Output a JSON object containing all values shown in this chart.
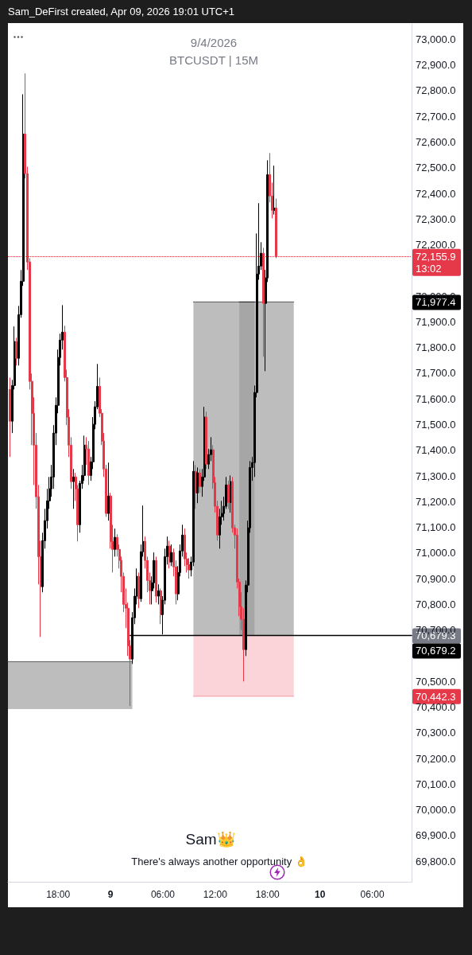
{
  "chart_data": {
    "type": "candlestick",
    "title": "9/4/2026",
    "subtitle": "BTCUSDT | 15M",
    "xlim": [
      "2026-04-08T12:15",
      "2026-04-10T10:30"
    ],
    "xticks": [
      {
        "value": "2026-04-08T18:00",
        "label": "18:00"
      },
      {
        "value": "2026-04-09T00:00",
        "label": "9"
      },
      {
        "value": "2026-04-09T06:00",
        "label": "06:00"
      },
      {
        "value": "2026-04-09T12:00",
        "label": "12:00"
      },
      {
        "value": "2026-04-09T18:00",
        "label": "18:00"
      },
      {
        "value": "2026-04-10T00:00",
        "label": "10"
      },
      {
        "value": "2026-04-10T06:00",
        "label": "06:00"
      }
    ],
    "ylim": [
      69720,
      73060
    ],
    "yticks": [
      {
        "value": 69800,
        "label": "69,800.0"
      },
      {
        "value": 69900,
        "label": "69,900.0"
      },
      {
        "value": 70000,
        "label": "70,000.0"
      },
      {
        "value": 70100,
        "label": "70,100.0"
      },
      {
        "value": 70200,
        "label": "70,200.0"
      },
      {
        "value": 70300,
        "label": "70,300.0"
      },
      {
        "value": 70400,
        "label": "70,400.0"
      },
      {
        "value": 70500,
        "label": "70,500.0"
      },
      {
        "value": 70700,
        "label": "70,700.0"
      },
      {
        "value": 70800,
        "label": "70,800.0"
      },
      {
        "value": 70900,
        "label": "70,900.0"
      },
      {
        "value": 71000,
        "label": "71,000.0"
      },
      {
        "value": 71100,
        "label": "71,100.0"
      },
      {
        "value": 71200,
        "label": "71,200.0"
      },
      {
        "value": 71300,
        "label": "71,300.0"
      },
      {
        "value": 71400,
        "label": "71,400.0"
      },
      {
        "value": 71500,
        "label": "71,500.0"
      },
      {
        "value": 71600,
        "label": "71,600.0"
      },
      {
        "value": 71700,
        "label": "71,700.0"
      },
      {
        "value": 71800,
        "label": "71,800.0"
      },
      {
        "value": 71900,
        "label": "71,900.0"
      },
      {
        "value": 72000,
        "label": "72,000.0"
      },
      {
        "value": 72200,
        "label": "72,200.0"
      },
      {
        "value": 72300,
        "label": "72,300.0"
      },
      {
        "value": 72400,
        "label": "72,400.0"
      },
      {
        "value": 72500,
        "label": "72,500.0"
      },
      {
        "value": 72600,
        "label": "72,600.0"
      },
      {
        "value": 72700,
        "label": "72,700.0"
      },
      {
        "value": 72800,
        "label": "72,800.0"
      },
      {
        "value": 72900,
        "label": "72,900.0"
      },
      {
        "value": 73000,
        "label": "73,000.0"
      }
    ],
    "series": [
      {
        "x": [
          "2026-04-08T12:30",
          "2026-04-08T12:45",
          "2026-04-08T13:00",
          "2026-04-08T13:15",
          "2026-04-08T13:30",
          "2026-04-08T13:45",
          "2026-04-08T14:00",
          "2026-04-08T14:15",
          "2026-04-08T14:30",
          "2026-04-08T14:45",
          "2026-04-08T15:00",
          "2026-04-08T15:15",
          "2026-04-08T15:30",
          "2026-04-08T15:45",
          "2026-04-08T16:00",
          "2026-04-08T16:15",
          "2026-04-08T16:30",
          "2026-04-08T16:45",
          "2026-04-08T17:00",
          "2026-04-08T17:15",
          "2026-04-08T17:30",
          "2026-04-08T17:45",
          "2026-04-08T18:00",
          "2026-04-08T18:15",
          "2026-04-08T18:30",
          "2026-04-08T18:45",
          "2026-04-08T19:00",
          "2026-04-08T19:15",
          "2026-04-08T19:30",
          "2026-04-08T19:45",
          "2026-04-08T20:00",
          "2026-04-08T20:15",
          "2026-04-08T20:30",
          "2026-04-08T20:45",
          "2026-04-08T21:00",
          "2026-04-08T21:15",
          "2026-04-08T21:30",
          "2026-04-08T21:45",
          "2026-04-08T22:00",
          "2026-04-08T22:15",
          "2026-04-08T22:30",
          "2026-04-08T22:45",
          "2026-04-08T23:00",
          "2026-04-08T23:15",
          "2026-04-08T23:30",
          "2026-04-08T23:45",
          "2026-04-09T00:00",
          "2026-04-09T00:15",
          "2026-04-09T00:30",
          "2026-04-09T00:45",
          "2026-04-09T01:00",
          "2026-04-09T01:15",
          "2026-04-09T01:30",
          "2026-04-09T01:45",
          "2026-04-09T02:00",
          "2026-04-09T02:15",
          "2026-04-09T02:30",
          "2026-04-09T02:45",
          "2026-04-09T03:00",
          "2026-04-09T03:15",
          "2026-04-09T03:30",
          "2026-04-09T03:45",
          "2026-04-09T04:00",
          "2026-04-09T04:15",
          "2026-04-09T04:30",
          "2026-04-09T04:45",
          "2026-04-09T05:00",
          "2026-04-09T05:15",
          "2026-04-09T05:30",
          "2026-04-09T05:45",
          "2026-04-09T06:00",
          "2026-04-09T06:15",
          "2026-04-09T06:30",
          "2026-04-09T06:45",
          "2026-04-09T07:00",
          "2026-04-09T07:15",
          "2026-04-09T07:30",
          "2026-04-09T07:45",
          "2026-04-09T08:00",
          "2026-04-09T08:15",
          "2026-04-09T08:30",
          "2026-04-09T08:45",
          "2026-04-09T09:00",
          "2026-04-09T09:15",
          "2026-04-09T09:30",
          "2026-04-09T09:45",
          "2026-04-09T10:00",
          "2026-04-09T10:15",
          "2026-04-09T10:30",
          "2026-04-09T10:45",
          "2026-04-09T11:00",
          "2026-04-09T11:15",
          "2026-04-09T11:30",
          "2026-04-09T11:45",
          "2026-04-09T12:00",
          "2026-04-09T12:15",
          "2026-04-09T12:30",
          "2026-04-09T12:45",
          "2026-04-09T13:00",
          "2026-04-09T13:15",
          "2026-04-09T13:30",
          "2026-04-09T13:45",
          "2026-04-09T14:00",
          "2026-04-09T14:15",
          "2026-04-09T14:30",
          "2026-04-09T14:45",
          "2026-04-09T15:00",
          "2026-04-09T15:15",
          "2026-04-09T15:30",
          "2026-04-09T15:45",
          "2026-04-09T16:00",
          "2026-04-09T16:15",
          "2026-04-09T16:30",
          "2026-04-09T16:45",
          "2026-04-09T17:00",
          "2026-04-09T17:15",
          "2026-04-09T17:30",
          "2026-04-09T17:45",
          "2026-04-09T18:00",
          "2026-04-09T18:15",
          "2026-04-09T18:30",
          "2026-04-09T18:45",
          "2026-04-09T19:00"
        ],
        "ohlc": [
          [
            71637,
            71683,
            71374,
            71513
          ],
          [
            71513,
            71674,
            71467,
            71652
          ],
          [
            71652,
            71882,
            71637,
            71823
          ],
          [
            71823,
            71838,
            71730,
            71758
          ],
          [
            71758,
            71962,
            71730,
            71928
          ],
          [
            71928,
            72102,
            71916,
            72058
          ],
          [
            72058,
            72786,
            72040,
            72631
          ],
          [
            72631,
            72867,
            72458,
            72477
          ],
          [
            72477,
            72504,
            72102,
            72133
          ],
          [
            72133,
            72148,
            71637,
            71668
          ],
          [
            71668,
            71699,
            71420,
            71544
          ],
          [
            71544,
            71606,
            71265,
            71420
          ],
          [
            71420,
            71467,
            71172,
            71219
          ],
          [
            71219,
            71265,
            70878,
            70986
          ],
          [
            70986,
            71048,
            70673,
            70869
          ],
          [
            70869,
            71079,
            70847,
            71048
          ],
          [
            71048,
            71172,
            71017,
            71126
          ],
          [
            71126,
            71250,
            71095,
            71203
          ],
          [
            71203,
            71296,
            71172,
            71250
          ],
          [
            71250,
            71343,
            71219,
            71296
          ],
          [
            71296,
            71498,
            71250,
            71467
          ],
          [
            71467,
            71606,
            71420,
            71575
          ],
          [
            71575,
            71792,
            71544,
            71761
          ],
          [
            71761,
            71854,
            71730,
            71829
          ],
          [
            71829,
            71965,
            71792,
            71860
          ],
          [
            71860,
            71885,
            71668,
            71683
          ],
          [
            71683,
            71714,
            71498,
            71529
          ],
          [
            71529,
            71560,
            71374,
            71420
          ],
          [
            71420,
            71451,
            71250,
            71278
          ],
          [
            71278,
            71327,
            71172,
            71296
          ],
          [
            71296,
            71312,
            71203,
            71250
          ],
          [
            71250,
            71265,
            71045,
            71110
          ],
          [
            71110,
            71281,
            71079,
            71271
          ],
          [
            71271,
            71343,
            71250,
            71302
          ],
          [
            71302,
            71457,
            71281,
            71420
          ],
          [
            71420,
            71451,
            71343,
            71405
          ],
          [
            71405,
            71436,
            71265,
            71302
          ],
          [
            71302,
            71374,
            71281,
            71355
          ],
          [
            71355,
            71529,
            71327,
            71501
          ],
          [
            71501,
            71591,
            71482,
            71569
          ],
          [
            71569,
            71736,
            71560,
            71649
          ],
          [
            71649,
            71683,
            71529,
            71544
          ],
          [
            71544,
            71560,
            71420,
            71436
          ],
          [
            71436,
            71467,
            71296,
            71327
          ],
          [
            71327,
            71343,
            71141,
            71154
          ],
          [
            71154,
            71352,
            71126,
            71222
          ],
          [
            71222,
            71234,
            71017,
            71045
          ],
          [
            71045,
            71110,
            70924,
            71014
          ],
          [
            71014,
            71095,
            70986,
            71061
          ],
          [
            71061,
            71073,
            70986,
            71014
          ],
          [
            71014,
            71033,
            70940,
            70971
          ],
          [
            70971,
            70986,
            70847,
            70909
          ],
          [
            70909,
            70924,
            70770,
            70800
          ],
          [
            70800,
            70862,
            70708,
            70785
          ],
          [
            70785,
            70807,
            70599,
            70639
          ],
          [
            70639,
            70661,
            70404,
            70587
          ],
          [
            70587,
            70770,
            70568,
            70748
          ],
          [
            70748,
            70862,
            70723,
            70832
          ],
          [
            70832,
            70940,
            70800,
            70909
          ],
          [
            70909,
            70924,
            70785,
            70822
          ],
          [
            70822,
            71033,
            70810,
            71005
          ],
          [
            71005,
            71185,
            70986,
            71045
          ],
          [
            71045,
            71064,
            70940,
            70971
          ],
          [
            70971,
            70986,
            70847,
            70893
          ],
          [
            70893,
            70924,
            70800,
            70853
          ],
          [
            70853,
            70909,
            70800,
            70884
          ],
          [
            70884,
            71002,
            70862,
            70971
          ],
          [
            70971,
            70986,
            70807,
            70832
          ],
          [
            70832,
            70878,
            70800,
            70853
          ],
          [
            70853,
            70862,
            70723,
            70760
          ],
          [
            70760,
            70832,
            70683,
            70816
          ],
          [
            70816,
            71017,
            70800,
            70986
          ],
          [
            70986,
            71064,
            70955,
            71027
          ],
          [
            71027,
            71048,
            70940,
            70965
          ],
          [
            70965,
            71033,
            70949,
            71002
          ],
          [
            71002,
            71017,
            70909,
            70946
          ],
          [
            70946,
            70971,
            70800,
            70841
          ],
          [
            70841,
            70949,
            70816,
            70924
          ],
          [
            70924,
            71033,
            70909,
            71008
          ],
          [
            71008,
            71110,
            70986,
            71070
          ],
          [
            71070,
            71095,
            70949,
            70977
          ],
          [
            70977,
            71002,
            70924,
            70955
          ],
          [
            70955,
            70980,
            70900,
            70934
          ],
          [
            70934,
            70986,
            70909,
            70965
          ],
          [
            70965,
            71358,
            70949,
            71318
          ],
          [
            71318,
            71343,
            71172,
            71234
          ],
          [
            71234,
            71333,
            71194,
            71312
          ],
          [
            71312,
            71327,
            71234,
            71259
          ],
          [
            71259,
            71327,
            71219,
            71296
          ],
          [
            71296,
            71569,
            71281,
            71529
          ],
          [
            71529,
            71550,
            71327,
            71346
          ],
          [
            71346,
            71405,
            71327,
            71383
          ],
          [
            71383,
            71451,
            71358,
            71402
          ],
          [
            71402,
            71420,
            71250,
            71274
          ],
          [
            71274,
            71296,
            71157,
            71182
          ],
          [
            71182,
            71203,
            71048,
            71070
          ],
          [
            71070,
            71172,
            71017,
            71141
          ],
          [
            71141,
            71203,
            71110,
            71154
          ],
          [
            71154,
            71219,
            71126,
            71182
          ],
          [
            71182,
            71296,
            71172,
            71265
          ],
          [
            71265,
            71281,
            71172,
            71197
          ],
          [
            71197,
            71302,
            71157,
            71278
          ],
          [
            71278,
            71296,
            71079,
            71098
          ],
          [
            71098,
            71110,
            71017,
            71070
          ],
          [
            71070,
            71095,
            70862,
            70887
          ],
          [
            70887,
            70900,
            70754,
            70791
          ],
          [
            70791,
            70847,
            70700,
            70742
          ],
          [
            70742,
            70785,
            70500,
            70624
          ],
          [
            70624,
            70893,
            70599,
            70875
          ],
          [
            70875,
            71126,
            70847,
            71098
          ],
          [
            71098,
            71358,
            71079,
            71333
          ],
          [
            71333,
            71374,
            71281,
            71352
          ],
          [
            71352,
            71652,
            71296,
            71625
          ],
          [
            71625,
            72244,
            71606,
            72086
          ],
          [
            72086,
            72362,
            72064,
            72117
          ],
          [
            72117,
            72210,
            72102,
            72167
          ],
          [
            72167,
            72188,
            71764,
            71972
          ],
          [
            71972,
            72102,
            71708,
            72071
          ],
          [
            72071,
            72529,
            72055,
            72473
          ],
          [
            72473,
            72557,
            72365,
            72390
          ],
          [
            72390,
            72442,
            72303,
            72334
          ],
          [
            72334,
            72508,
            72318,
            72343
          ],
          [
            72343,
            72380,
            72148,
            72155.9
          ]
        ],
        "colors": [
          "#e5394a",
          "#000000",
          "#000000",
          "#e5394a",
          "#000000",
          "#000000",
          "#000000",
          "#e5394a",
          "#e5394a",
          "#e5394a",
          "#e5394a",
          "#e5394a",
          "#e5394a",
          "#e5394a",
          "#e5394a",
          "#000000",
          "#000000",
          "#000000",
          "#000000",
          "#000000",
          "#000000",
          "#000000",
          "#000000",
          "#000000",
          "#000000",
          "#e5394a",
          "#e5394a",
          "#e5394a",
          "#e5394a",
          "#000000",
          "#e5394a",
          "#e5394a",
          "#000000",
          "#000000",
          "#000000",
          "#e5394a",
          "#e5394a",
          "#000000",
          "#000000",
          "#000000",
          "#000000",
          "#e5394a",
          "#e5394a",
          "#e5394a",
          "#e5394a",
          "#000000",
          "#e5394a",
          "#e5394a",
          "#000000",
          "#e5394a",
          "#e5394a",
          "#e5394a",
          "#e5394a",
          "#e5394a",
          "#e5394a",
          "#e5394a",
          "#000000",
          "#000000",
          "#000000",
          "#e5394a",
          "#000000",
          "#000000",
          "#e5394a",
          "#e5394a",
          "#e5394a",
          "#000000",
          "#000000",
          "#e5394a",
          "#000000",
          "#e5394a",
          "#000000",
          "#000000",
          "#000000",
          "#e5394a",
          "#000000",
          "#e5394a",
          "#e5394a",
          "#000000",
          "#000000",
          "#000000",
          "#e5394a",
          "#e5394a",
          "#e5394a",
          "#000000",
          "#000000",
          "#e5394a",
          "#000000",
          "#e5394a",
          "#000000",
          "#000000",
          "#e5394a",
          "#000000",
          "#000000",
          "#e5394a",
          "#e5394a",
          "#e5394a",
          "#000000",
          "#000000",
          "#000000",
          "#000000",
          "#e5394a",
          "#000000",
          "#e5394a",
          "#e5394a",
          "#e5394a",
          "#e5394a",
          "#e5394a",
          "#e5394a",
          "#000000",
          "#000000",
          "#000000",
          "#000000",
          "#000000",
          "#000000",
          "#000000",
          "#000000",
          "#e5394a",
          "#000000",
          "#000000",
          "#e5394a",
          "#e5394a",
          "#000000",
          "#e5394a"
        ]
      },
      {
        "type": "line",
        "x": [
          "2026-04-09T09:30",
          "2026-04-09T21:00"
        ],
        "values": [
          71977.4,
          71977.4
        ],
        "lower": [
          70679.3,
          70679.3
        ],
        "upper": [
          71977.4,
          71977.4
        ],
        "color": "#5a5a5a"
      },
      {
        "type": "line",
        "x": [
          "2026-04-09T09:30",
          "2026-04-09T21:00"
        ],
        "values": [
          70442.3,
          70442.3
        ],
        "lower": [
          70442.3,
          70442.3
        ],
        "upper": [
          70679.3,
          70679.3
        ],
        "color": "#f2949e"
      },
      {
        "type": "line",
        "x": [
          "2026-04-09T14:45",
          "2026-04-09T16:30"
        ],
        "values": [
          71977.4,
          71977.4
        ],
        "lower": [
          70679.3,
          70679.3
        ],
        "upper": [
          71977.4,
          71977.4
        ],
        "color": "#202020"
      },
      {
        "type": "line",
        "x": [
          "2026-04-08T12:15",
          "2026-04-09T02:30"
        ],
        "values": [
          70577,
          70577
        ],
        "lower": [
          70392,
          70392
        ],
        "upper": [
          70577,
          70577
        ],
        "color": "#5a5a5a"
      },
      {
        "type": "line",
        "x": [
          "2026-04-09T02:15",
          "2026-04-10T10:30"
        ],
        "values": [
          70679.2,
          70679.2
        ],
        "color": "#000000",
        "value_labels": [
          null,
          "70,679.2"
        ]
      }
    ],
    "ref_lines": [
      {
        "axis": "y",
        "value": 72155.9,
        "label": "72,155.9\n13:02",
        "color": "#e5394a",
        "line_style": "dotted"
      }
    ],
    "annotations": [
      "Sam_DeFirst created, Apr 09, 2026 19:01 UTC+1",
      "Sam👑",
      "There's always another opportunity 👌",
      "71,977.4",
      "70,679.3",
      "70,442.3"
    ]
  }
}
